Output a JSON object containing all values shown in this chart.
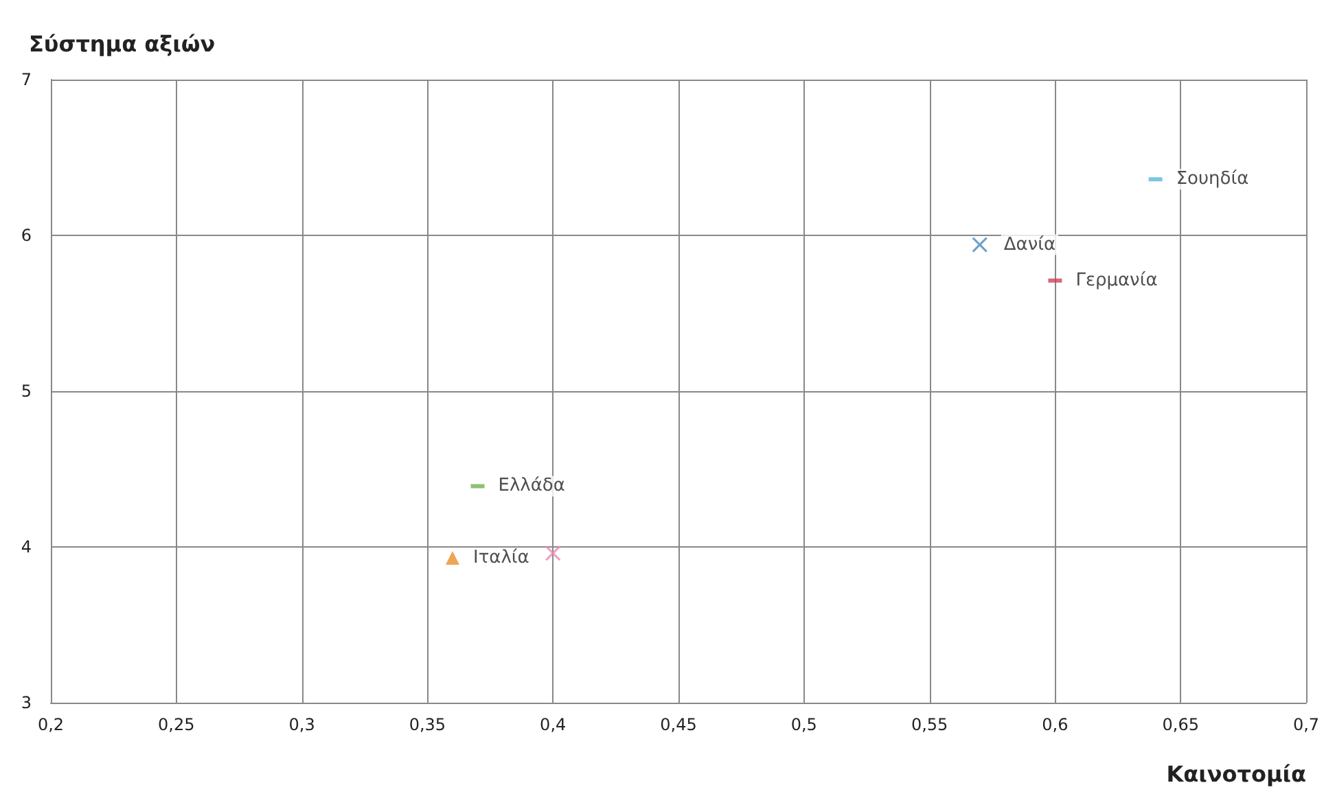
{
  "chart_data": {
    "type": "scatter",
    "ylabel": "Σύστημα αξιών",
    "xlabel": "Καινοτομία",
    "xlim": [
      0.2,
      0.7
    ],
    "ylim": [
      3,
      7
    ],
    "xticks": [
      {
        "value": 0.2,
        "label": "0,2"
      },
      {
        "value": 0.25,
        "label": "0,25"
      },
      {
        "value": 0.3,
        "label": "0,3"
      },
      {
        "value": 0.35,
        "label": "0,35"
      },
      {
        "value": 0.4,
        "label": "0,4"
      },
      {
        "value": 0.45,
        "label": "0,45"
      },
      {
        "value": 0.5,
        "label": "0,5"
      },
      {
        "value": 0.55,
        "label": "0,55"
      },
      {
        "value": 0.6,
        "label": "0,6"
      },
      {
        "value": 0.65,
        "label": "0,65"
      },
      {
        "value": 0.7,
        "label": "0,7"
      }
    ],
    "yticks": [
      3,
      4,
      5,
      6,
      7
    ],
    "grid": true,
    "legend": false,
    "series": [
      {
        "name": "Σουηδία",
        "color": "#5bb8d8",
        "marker": "square",
        "x": [
          0.64
        ],
        "values": [
          6.36
        ]
      },
      {
        "name": "Δανία",
        "color": "#4a8ab8",
        "marker": "cross",
        "x": [
          0.57
        ],
        "values": [
          5.94
        ]
      },
      {
        "name": "Γερμανία",
        "color": "#d04060",
        "marker": "square",
        "x": [
          0.6
        ],
        "values": [
          5.71
        ]
      },
      {
        "name": "Ελλάδα",
        "color": "#70b050",
        "marker": "square",
        "x": [
          0.37
        ],
        "values": [
          4.39
        ]
      },
      {
        "name": "Ιταλία",
        "color": "#e8902a",
        "marker": "triangle",
        "x": [
          0.36
        ],
        "values": [
          3.93
        ]
      },
      {
        "color": "#e888b0",
        "marker": "cross",
        "x": [
          0.4
        ],
        "values": [
          3.96
        ]
      }
    ]
  }
}
